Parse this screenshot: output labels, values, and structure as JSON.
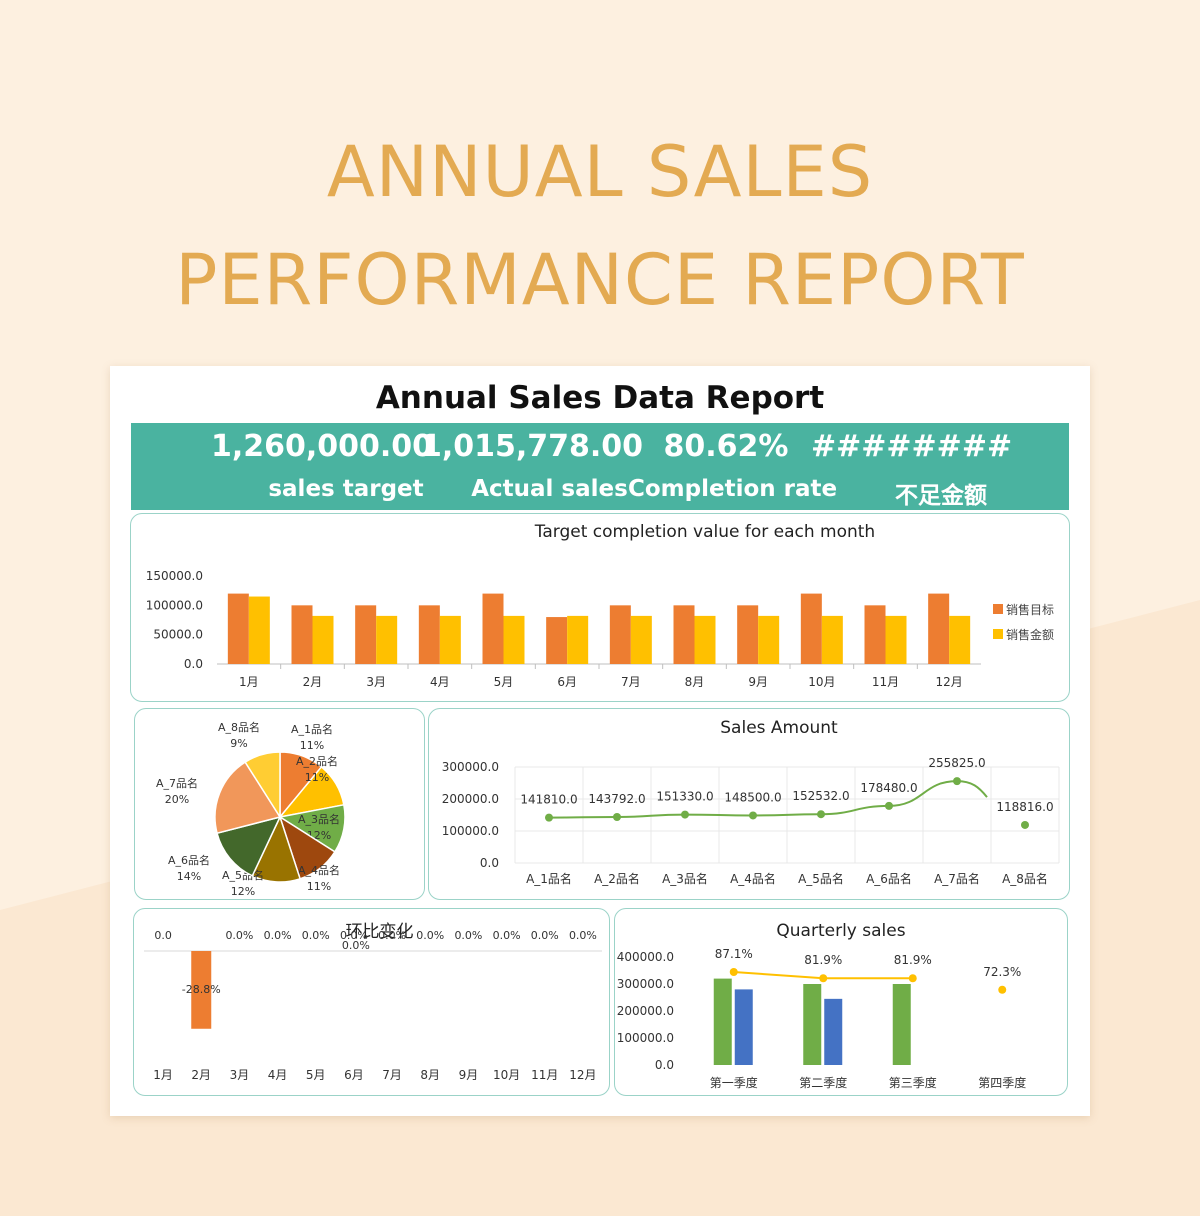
{
  "hero": {
    "line1": "ANNUAL SALES",
    "line2": "PERFORMANCE REPORT"
  },
  "report": {
    "title": "Annual Sales Data Report",
    "kpis": [
      {
        "value": "1,260,000.00",
        "label": "sales target"
      },
      {
        "value": "1,015,778.00",
        "label": "Actual sales"
      },
      {
        "value": "80.62%",
        "label": "Completion rate"
      },
      {
        "value": "########",
        "label": "不足金额"
      }
    ]
  },
  "colors": {
    "orange": "#ed7d31",
    "yellow": "#ffc000",
    "green": "#70ad47",
    "blue": "#4472c4",
    "teal": "#4ab3a0",
    "gold": "#e3aa52"
  },
  "chart_data": [
    {
      "type": "bar",
      "title": "Target completion value for each month",
      "categories": [
        "1月",
        "2月",
        "3月",
        "4月",
        "5月",
        "6月",
        "7月",
        "8月",
        "9月",
        "10月",
        "11月",
        "12月"
      ],
      "series": [
        {
          "name": "销售目标",
          "values": [
            120000,
            100000,
            100000,
            100000,
            120000,
            80000,
            100000,
            100000,
            100000,
            120000,
            100000,
            120000
          ]
        },
        {
          "name": "销售金额",
          "values": [
            115000,
            82000,
            82000,
            82000,
            82000,
            82000,
            82000,
            82000,
            82000,
            82000,
            82000,
            82000
          ]
        }
      ],
      "yticks": [
        "150000.0",
        "100000.0",
        "50000.0",
        "0.0"
      ],
      "ylim": [
        0,
        150000
      ],
      "legend": "right"
    },
    {
      "type": "pie",
      "categories": [
        "A_1品名",
        "A_2品名",
        "A_3品名",
        "A_4品名",
        "A_5品名",
        "A_6品名",
        "A_7品名",
        "A_8品名"
      ],
      "labels": [
        "11%",
        "11%",
        "12%",
        "11%",
        "12%",
        "14%",
        "20%",
        "9%"
      ],
      "values": [
        11,
        11,
        12,
        11,
        12,
        14,
        20,
        9
      ],
      "colors": [
        "#ed7d31",
        "#ffc000",
        "#70ad47",
        "#9e480e",
        "#997300",
        "#43682b",
        "#f1975a",
        "#ffcd33"
      ]
    },
    {
      "type": "line",
      "title": "Sales Amount",
      "categories": [
        "A_1品名",
        "A_2品名",
        "A_3品名",
        "A_4品名",
        "A_5品名",
        "A_6品名",
        "A_7品名",
        "A_8品名"
      ],
      "values": [
        141810.0,
        143792.0,
        151330.0,
        148500.0,
        152532.0,
        178480.0,
        255825.0,
        118816.0
      ],
      "labels": [
        "141810.0",
        "143792.0",
        "151330.0",
        "148500.0",
        "152532.0",
        "178480.0",
        "255825.0",
        "118816.0"
      ],
      "yticks": [
        "300000.0",
        "200000.0",
        "100000.0",
        "0.0"
      ],
      "ylim": [
        0,
        300000
      ]
    },
    {
      "type": "bar",
      "title": "环比变化",
      "categories": [
        "1月",
        "2月",
        "3月",
        "4月",
        "5月",
        "6月",
        "7月",
        "8月",
        "9月",
        "10月",
        "11月",
        "12月"
      ],
      "values": [
        0.0,
        -28.8,
        0.0,
        0.0,
        0.0,
        0.0,
        0.0,
        0.0,
        0.0,
        0.0,
        0.0,
        0.0
      ],
      "labels": [
        "0.0",
        "-28.8%",
        "0.0%",
        "0.0%",
        "0.0%",
        "0.0%",
        "0.0%",
        "0.0%",
        "0.0%",
        "0.0%",
        "0.0%",
        "0.0%"
      ],
      "extra_labels": [
        "0.0%"
      ]
    },
    {
      "type": "bar",
      "title": "Quarterly sales",
      "categories": [
        "第一季度",
        "第二季度",
        "第三季度",
        "第四季度"
      ],
      "series": [
        {
          "values": [
            320000,
            300000,
            300000,
            0
          ]
        },
        {
          "values": [
            280000,
            245000,
            0,
            0
          ]
        }
      ],
      "rate_values": [
        87.1,
        81.9,
        81.9,
        72.3
      ],
      "rate_labels": [
        "87.1%",
        "81.9%",
        "81.9%",
        "72.3%"
      ],
      "yticks": [
        "400000.0",
        "300000.0",
        "200000.0",
        "100000.0",
        "0.0"
      ],
      "ylim": [
        0,
        400000
      ]
    }
  ]
}
